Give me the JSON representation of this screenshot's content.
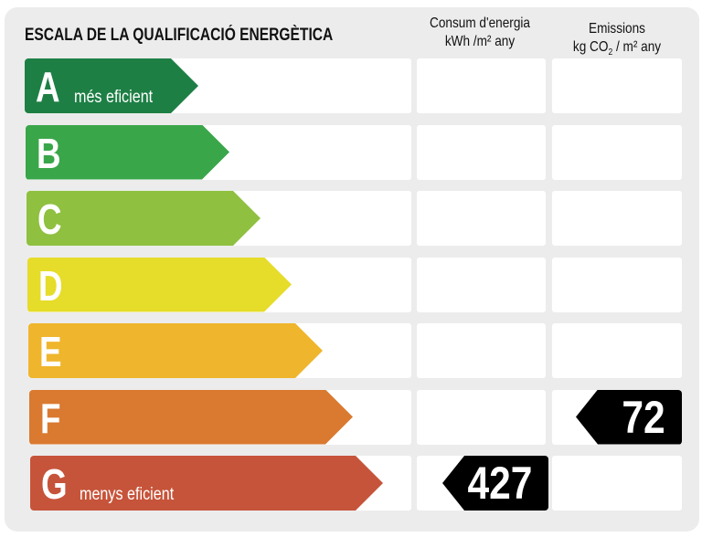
{
  "title": "ESCALA DE LA QUALIFICACIÓ ENERGÈTICA",
  "columns": {
    "energy": {
      "line1": "Consum d'energia",
      "line2": "kWh /m² any"
    },
    "emissions": {
      "line1": "Emissions",
      "line2_pre": "kg CO",
      "line2_sub": "2",
      "line2_post": " / m² any"
    }
  },
  "ratings": [
    {
      "letter": "A",
      "label": "més eficient",
      "color": "#1e7f45"
    },
    {
      "letter": "B",
      "label": "",
      "color": "#3aa64a"
    },
    {
      "letter": "C",
      "label": "",
      "color": "#8fc040"
    },
    {
      "letter": "D",
      "label": "",
      "color": "#e6dc2a"
    },
    {
      "letter": "E",
      "label": "",
      "color": "#efb52c"
    },
    {
      "letter": "F",
      "label": "",
      "color": "#d97a30"
    },
    {
      "letter": "G",
      "label": "menys eficient",
      "color": "#c6543a"
    }
  ],
  "energy_value": {
    "rating": "G",
    "value": "427"
  },
  "emissions_value": {
    "rating": "F",
    "value": "72"
  }
}
